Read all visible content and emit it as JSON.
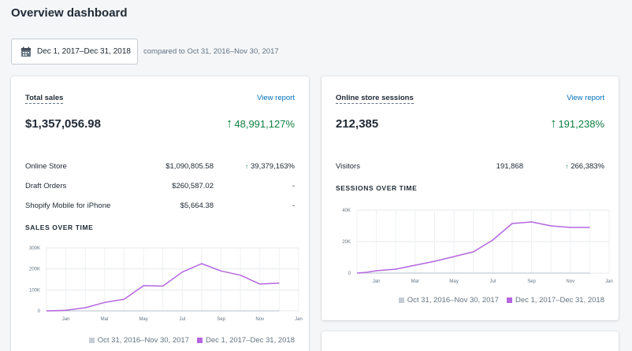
{
  "page": {
    "title": "Overview dashboard"
  },
  "date_picker": {
    "label": "Dec 1, 2017–Dec 31, 2018",
    "compare_text": "compared to Oct 31, 2016–Nov 30, 2017"
  },
  "colors": {
    "accent": "#b566e0",
    "previous": "#c4cdd5",
    "positive": "#108043",
    "link": "#006fbb"
  },
  "total_sales": {
    "title": "Total sales",
    "link": "View report",
    "value": "$1,357,056.98",
    "change": "48,991,127%",
    "rows": [
      {
        "name": "Online Store",
        "value": "$1,090,805.58",
        "change": "39,379,163%",
        "up": true
      },
      {
        "name": "Draft Orders",
        "value": "$260,587.02",
        "change": "-",
        "up": false
      },
      {
        "name": "Shopify Mobile for iPhone",
        "value": "$5,664.38",
        "change": "-",
        "up": false
      }
    ],
    "chart_title": "SALES OVER TIME",
    "legend": [
      "Oct 31, 2016–Nov 30, 2017",
      "Dec 1, 2017–Dec 31, 2018"
    ]
  },
  "sessions": {
    "title": "Online store sessions",
    "link": "View report",
    "value": "212,385",
    "change": "191,238%",
    "rows": [
      {
        "name": "Visitors",
        "value": "191,868",
        "change": "266,383%",
        "up": true
      }
    ],
    "chart_title": "SESSIONS OVER TIME",
    "legend": [
      "Oct 31, 2016–Nov 30, 2017",
      "Dec 1, 2017–Dec 31, 2018"
    ]
  },
  "chart_data": [
    {
      "type": "line",
      "title": "SALES OVER TIME",
      "x_ticks": [
        "Jan",
        "Mar",
        "May",
        "Jul",
        "Sep",
        "Nov",
        "Jan"
      ],
      "y_ticks": [
        "0",
        "100K",
        "200K",
        "300K"
      ],
      "ylim": [
        0,
        300000
      ],
      "x": [
        -1,
        -0.5,
        0,
        1,
        2,
        3,
        4,
        5,
        6,
        7,
        8,
        9,
        10,
        11,
        12
      ],
      "series": [
        {
          "name": "Dec 1, 2017–Dec 31, 2018",
          "values": [
            0,
            1000,
            3000,
            15000,
            40000,
            55000,
            120000,
            118000,
            185000,
            225000,
            190000,
            170000,
            128000,
            132000,
            null
          ]
        },
        {
          "name": "Oct 31, 2016–Nov 30, 2017",
          "values": [
            0,
            0,
            0,
            0,
            0,
            0,
            0,
            0,
            0,
            0,
            0,
            0,
            0,
            0,
            null
          ]
        }
      ],
      "grid": true,
      "legend_position": "bottom-right"
    },
    {
      "type": "line",
      "title": "SESSIONS OVER TIME",
      "x_ticks": [
        "Jan",
        "Mar",
        "May",
        "Jul",
        "Sep",
        "Nov",
        "Jan"
      ],
      "y_ticks": [
        "0",
        "20K",
        "40K"
      ],
      "ylim": [
        0,
        40000
      ],
      "x": [
        -1,
        -0.5,
        0,
        1,
        2,
        3,
        4,
        5,
        6,
        7,
        8,
        9,
        10,
        11,
        12
      ],
      "series": [
        {
          "name": "Dec 1, 2017–Dec 31, 2018",
          "values": [
            0,
            500,
            1500,
            2500,
            5000,
            7500,
            10500,
            13500,
            21000,
            31500,
            32500,
            30000,
            29000,
            29000,
            null
          ]
        },
        {
          "name": "Oct 31, 2016–Nov 30, 2017",
          "values": [
            0,
            0,
            0,
            0,
            0,
            0,
            0,
            0,
            0,
            0,
            0,
            0,
            0,
            0,
            null
          ]
        }
      ],
      "grid": true,
      "legend_position": "bottom-right"
    }
  ]
}
